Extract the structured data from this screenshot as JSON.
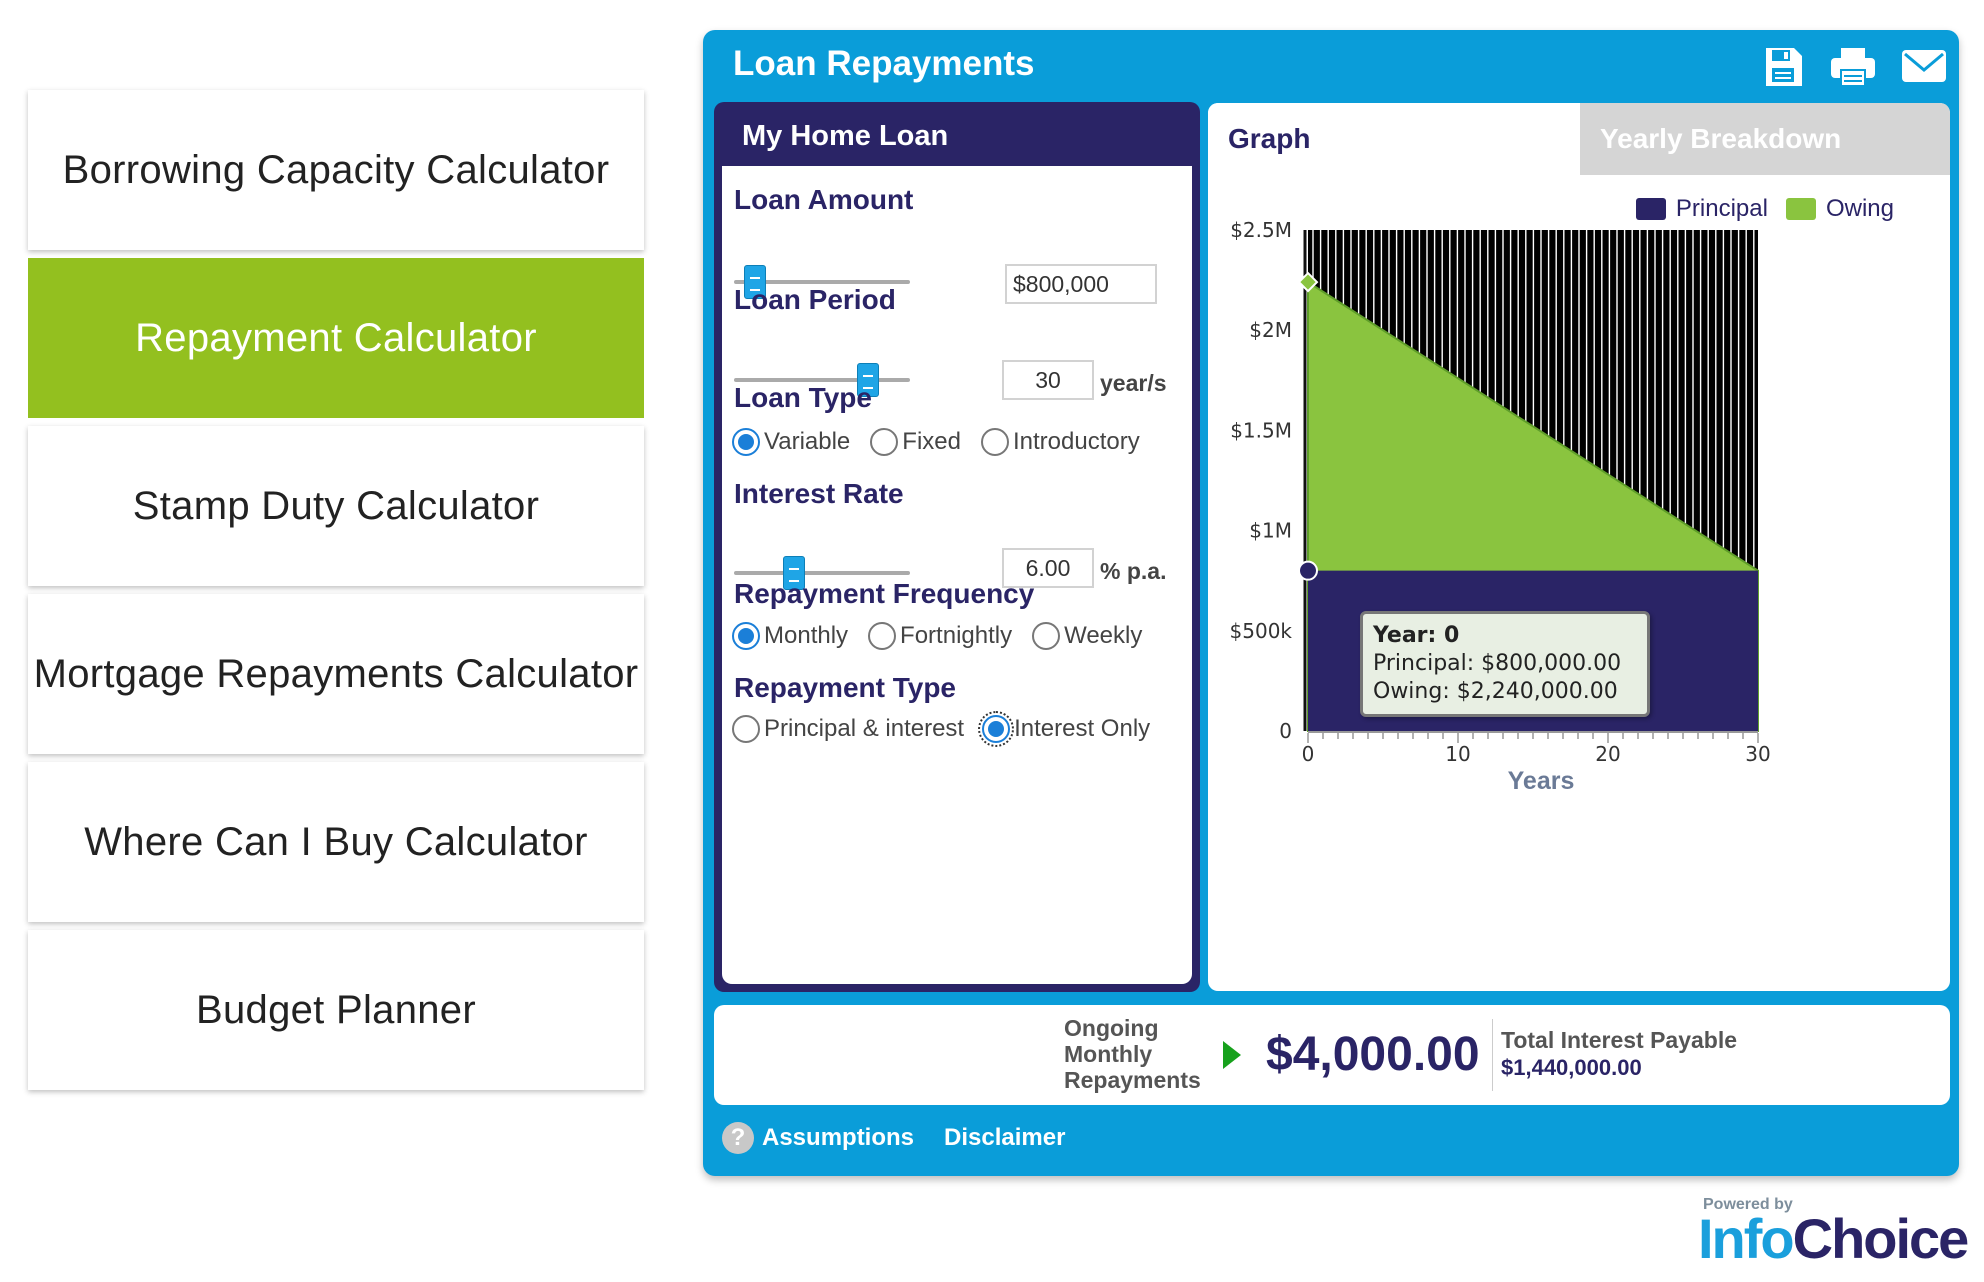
{
  "nav": {
    "items": [
      {
        "label": "Borrowing Capacity Calculator"
      },
      {
        "label": "Repayment Calculator",
        "active": true
      },
      {
        "label": "Stamp Duty Calculator"
      },
      {
        "label": "Mortgage Repayments Calculator"
      },
      {
        "label": "Where Can I Buy Calculator"
      },
      {
        "label": "Budget Planner"
      }
    ]
  },
  "calculator": {
    "title": "Loan Repayments",
    "toolbar": [
      "save-icon",
      "print-icon",
      "email-icon"
    ],
    "panel_title": "My Home Loan",
    "loan_amount": {
      "label": "Loan Amount",
      "value": "$800,000",
      "slider_fraction": 0.12
    },
    "loan_period": {
      "label": "Loan Period",
      "value": "30",
      "unit": "year/s",
      "slider_fraction": 0.76
    },
    "loan_type": {
      "label": "Loan Type",
      "options": [
        "Variable",
        "Fixed",
        "Introductory"
      ],
      "selected": "Variable"
    },
    "interest_rate": {
      "label": "Interest Rate",
      "value": "6.00",
      "unit": "% p.a.",
      "slider_fraction": 0.34
    },
    "repayment_frequency": {
      "label": "Repayment Frequency",
      "options": [
        "Monthly",
        "Fortnightly",
        "Weekly"
      ],
      "selected": "Monthly"
    },
    "repayment_type": {
      "label": "Repayment Type",
      "options": [
        "Principal & interest",
        "Interest Only"
      ],
      "selected": "Interest Only"
    }
  },
  "tabs": {
    "graph": "Graph",
    "yearly": "Yearly Breakdown"
  },
  "legend": {
    "principal": "Principal",
    "owing": "Owing"
  },
  "colors": {
    "principal": "#2a2466",
    "owing": "#8ac43f",
    "brand_blue": "#0a9dd9",
    "accent_green": "#93c01f"
  },
  "chart_data": {
    "type": "area",
    "xlabel": "Years",
    "ylabel": "",
    "x_ticks": [
      "0",
      "10",
      "20",
      "30"
    ],
    "y_ticks": [
      "0",
      "$500k",
      "$1M",
      "$1.5M",
      "$2M",
      "$2.5M"
    ],
    "xlim": [
      0,
      30
    ],
    "ylim": [
      0,
      2500000
    ],
    "x": [
      0,
      30
    ],
    "series": [
      {
        "name": "Principal",
        "values": [
          800000,
          800000
        ]
      },
      {
        "name": "Owing",
        "values": [
          2240000,
          800000
        ]
      }
    ],
    "grid": true
  },
  "tooltip": {
    "year": "Year: 0",
    "principal": "Principal: $800,000.00",
    "owing": "Owing: $2,240,000.00"
  },
  "summary": {
    "label_line1": "Ongoing",
    "label_line2": "Monthly",
    "label_line3": "Repayments",
    "value": "$4,000.00",
    "total_label": "Total Interest Payable",
    "total_value": "$1,440,000.00"
  },
  "footer": {
    "assumptions": "Assumptions",
    "disclaimer": "Disclaimer"
  },
  "brand": {
    "powered_by": "Powered by",
    "name_part1": "Info",
    "name_part2": "Choice"
  }
}
